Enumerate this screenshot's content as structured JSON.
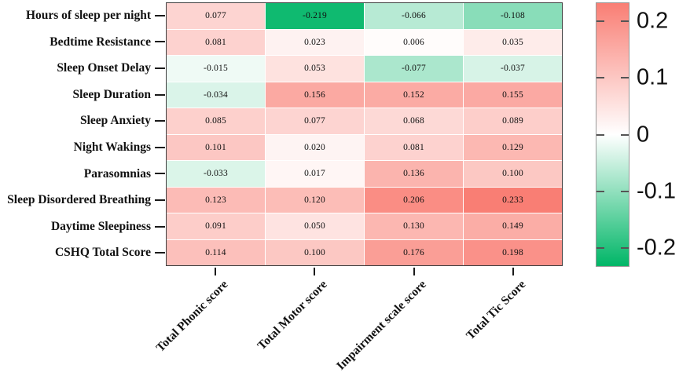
{
  "chart_data": {
    "type": "heatmap",
    "title": "",
    "rows": [
      "Hours of sleep per night",
      "Bedtime Resistance",
      "Sleep Onset Delay",
      "Sleep Duration",
      "Sleep Anxiety",
      "Night Wakings",
      "Parasomnias",
      "Sleep Disordered Breathing",
      "Daytime Sleepiness",
      "CSHQ Total Score"
    ],
    "columns": [
      "Total Phonic score",
      "Total Motor score",
      "Impairment scale score",
      "Total Tic Score"
    ],
    "values": [
      [
        0.077,
        -0.219,
        -0.066,
        -0.108
      ],
      [
        0.081,
        0.023,
        0.006,
        0.035
      ],
      [
        -0.015,
        0.053,
        -0.077,
        -0.037
      ],
      [
        -0.034,
        0.156,
        0.152,
        0.155
      ],
      [
        0.085,
        0.077,
        0.068,
        0.089
      ],
      [
        0.101,
        0.02,
        0.081,
        0.129
      ],
      [
        -0.033,
        0.017,
        0.136,
        0.1
      ],
      [
        0.123,
        0.12,
        0.206,
        0.233
      ],
      [
        0.091,
        0.05,
        0.13,
        0.149
      ],
      [
        0.114,
        0.1,
        0.176,
        0.198
      ]
    ],
    "value_decimals": 3,
    "x_tick_rotation_deg": 45,
    "grid": false,
    "color_scale": {
      "vmin": -0.233,
      "vmax": 0.233,
      "positive_color": "#F97E74",
      "zero_color": "#FFFFFF",
      "negative_color": "#00B667"
    },
    "colorbar": {
      "position": "right",
      "ticks": [
        {
          "value": 0.2,
          "label": "0.2"
        },
        {
          "value": 0.1,
          "label": "0.1"
        },
        {
          "value": 0,
          "label": "0"
        },
        {
          "value": -0.1,
          "label": "-0.1"
        },
        {
          "value": -0.2,
          "label": "-0.2"
        }
      ]
    }
  }
}
